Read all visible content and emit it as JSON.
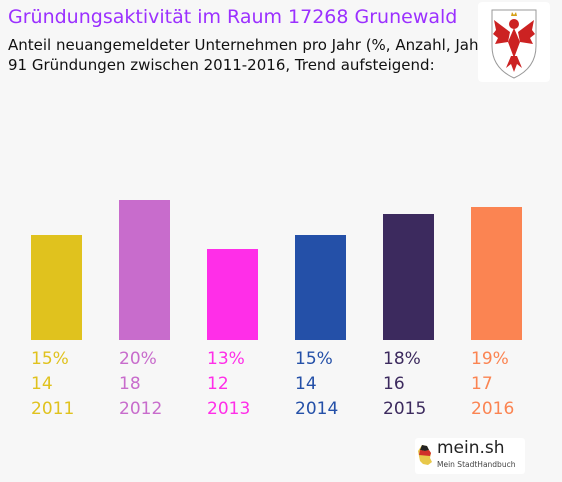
{
  "header": {
    "title": "Gründungsaktivität im Raum 17268 Grunewald",
    "subtitle_line1": "Anteil neuangemeldeter Unternehmen pro Jahr (%, Anzahl, Jahr)",
    "subtitle_line2": "91 Gründungen zwischen 2011-2016, Trend aufsteigend:"
  },
  "crest": {
    "icon": "brandenburg-eagle-icon",
    "color": "#cc2222"
  },
  "logo": {
    "name": "mein.sh",
    "tagline": "Mein StadtHandbuch",
    "icon": "germany-map-icon"
  },
  "chart_data": {
    "type": "bar",
    "categories": [
      "2011",
      "2012",
      "2013",
      "2014",
      "2015",
      "2016"
    ],
    "values": [
      15,
      20,
      13,
      15,
      18,
      19
    ],
    "value_labels": [
      "15%",
      "20%",
      "13%",
      "15%",
      "18%",
      "19%"
    ],
    "counts": [
      14,
      18,
      12,
      14,
      16,
      17
    ],
    "colors": [
      "#e0c21e",
      "#c86ccc",
      "#ff2ee8",
      "#2450a8",
      "#3c2a5e",
      "#fb8452"
    ],
    "ylim": [
      0,
      20
    ],
    "grid": false,
    "legend": "none"
  }
}
